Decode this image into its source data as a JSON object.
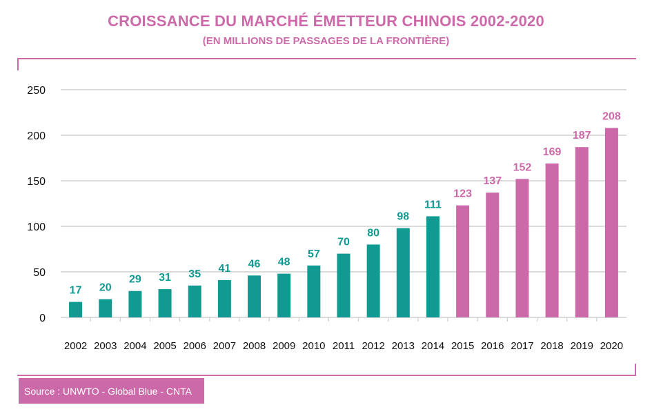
{
  "colors": {
    "accent": "#cc6aa9",
    "teal": "#119a92",
    "grid": "#cfcfcf",
    "text": "#111111"
  },
  "header": {
    "title": "CROISSANCE DU MARCHÉ ÉMETTEUR CHINOIS 2002-2020",
    "subtitle": "(EN MILLIONS DE PASSAGES DE LA FRONTIÈRE)"
  },
  "footer": {
    "source": "Source : UNWTO - Global Blue - CNTA"
  },
  "chart_data": {
    "type": "bar",
    "title": "CROISSANCE DU MARCHÉ ÉMETTEUR CHINOIS 2002-2020",
    "subtitle": "(EN MILLIONS DE PASSAGES DE LA FRONTIÈRE)",
    "xlabel": "",
    "ylabel": "",
    "ylim": [
      0,
      250
    ],
    "yticks": [
      0,
      50,
      100,
      150,
      200,
      250
    ],
    "grid": true,
    "categories": [
      "2002",
      "2003",
      "2004",
      "2005",
      "2006",
      "2007",
      "2008",
      "2009",
      "2010",
      "2011",
      "2012",
      "2013",
      "2014",
      "2015",
      "2016",
      "2017",
      "2018",
      "2019",
      "2020"
    ],
    "values": [
      17,
      20,
      29,
      31,
      35,
      41,
      46,
      48,
      57,
      70,
      80,
      98,
      111,
      123,
      137,
      152,
      169,
      187,
      208
    ],
    "bar_colors": [
      "#119a92",
      "#119a92",
      "#119a92",
      "#119a92",
      "#119a92",
      "#119a92",
      "#119a92",
      "#119a92",
      "#119a92",
      "#119a92",
      "#119a92",
      "#119a92",
      "#119a92",
      "#cc6aa9",
      "#cc6aa9",
      "#cc6aa9",
      "#cc6aa9",
      "#cc6aa9",
      "#cc6aa9"
    ]
  }
}
